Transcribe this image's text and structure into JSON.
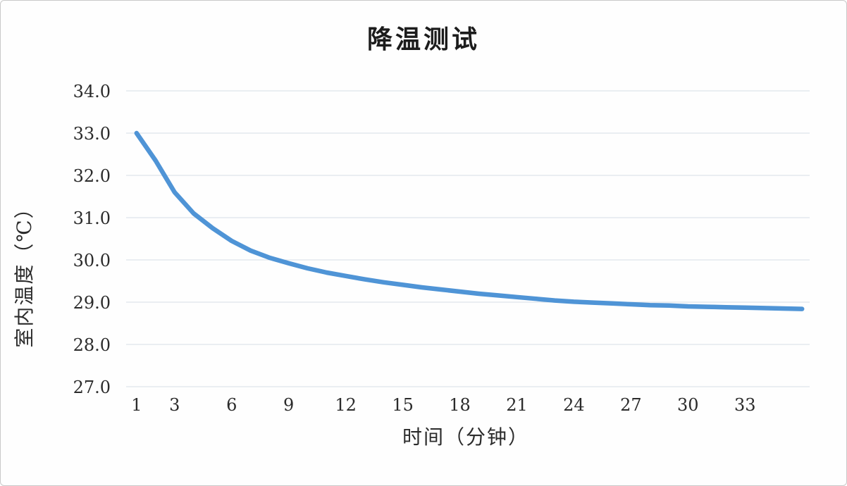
{
  "chart_data": {
    "type": "line",
    "title": "降温测试",
    "xlabel": "时间（分钟）",
    "ylabel": "室内温度（℃）",
    "x": [
      1,
      2,
      3,
      4,
      5,
      6,
      7,
      8,
      9,
      10,
      11,
      12,
      13,
      14,
      15,
      16,
      17,
      18,
      19,
      20,
      21,
      22,
      23,
      24,
      25,
      26,
      27,
      28,
      29,
      30,
      31,
      32,
      33,
      34,
      35,
      36
    ],
    "values": [
      33.0,
      32.35,
      31.6,
      31.1,
      30.75,
      30.45,
      30.22,
      30.05,
      29.92,
      29.8,
      29.7,
      29.62,
      29.54,
      29.47,
      29.41,
      29.35,
      29.3,
      29.25,
      29.2,
      29.16,
      29.12,
      29.08,
      29.04,
      29.01,
      28.99,
      28.97,
      28.95,
      28.93,
      28.92,
      28.9,
      28.89,
      28.88,
      28.87,
      28.86,
      28.85,
      28.84
    ],
    "x_ticks": [
      1,
      3,
      6,
      9,
      12,
      15,
      18,
      21,
      24,
      27,
      30,
      33
    ],
    "y_ticks": [
      {
        "value": 27,
        "label": "27.0"
      },
      {
        "value": 28,
        "label": "28.0"
      },
      {
        "value": 29,
        "label": "29.0"
      },
      {
        "value": 30,
        "label": "30.0"
      },
      {
        "value": 31,
        "label": "31.0"
      },
      {
        "value": 32,
        "label": "32.0"
      },
      {
        "value": 33,
        "label": "33.0"
      },
      {
        "value": 34,
        "label": "34.0"
      }
    ],
    "xlim": [
      0.45,
      36.4
    ],
    "ylim": [
      27,
      34
    ],
    "grid": "horizontal",
    "legend": "none",
    "line_color": "#4f94d6",
    "grid_color": "#d5dde6",
    "text_color": "#2b2b2b"
  }
}
